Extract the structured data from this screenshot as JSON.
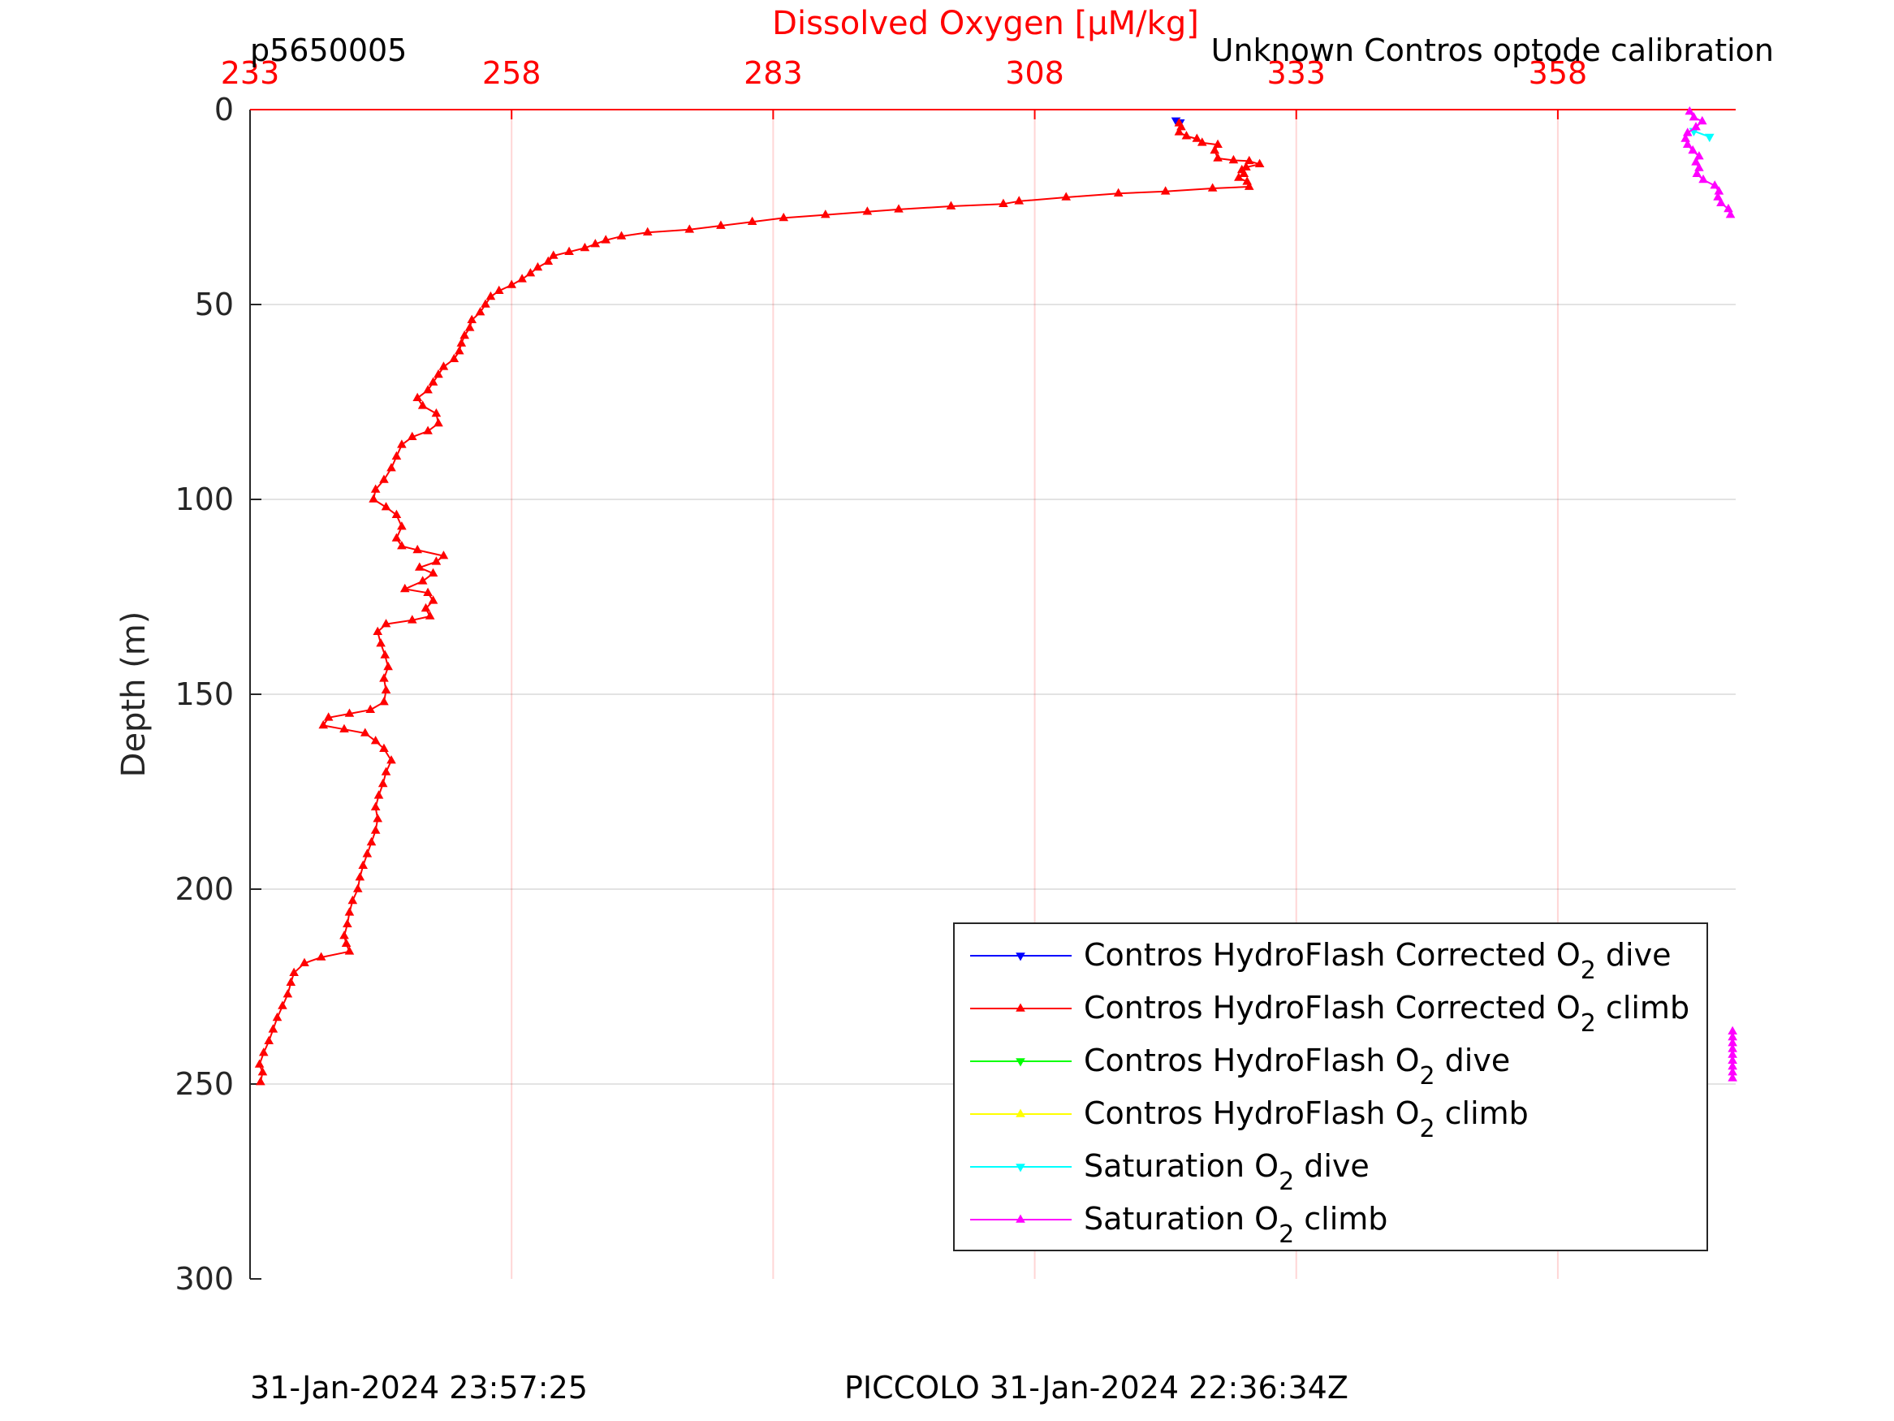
{
  "chart_data": {
    "type": "line",
    "title": "Dissolved Oxygen [µM/kg]",
    "title_color": "#ff0000",
    "top_left_label": "p5650005",
    "top_right_label": "Unknown Contros optode calibration",
    "footer_left": "31-Jan-2024 23:57:25",
    "footer_center": "PICCOLO 31-Jan-2024 22:36:34Z",
    "xlabel": "Dissolved Oxygen [µM/kg]",
    "ylabel": "Depth (m)",
    "xlim": [
      233,
      375
    ],
    "ylim": [
      0,
      300
    ],
    "y_reversed": true,
    "x_ticks": [
      "233",
      "258",
      "283",
      "308",
      "333",
      "358"
    ],
    "y_ticks": [
      "0",
      "50",
      "100",
      "150",
      "200",
      "250",
      "300"
    ],
    "grid": true,
    "legend_position": "bottom-right",
    "legend": [
      {
        "name_main": "Contros HydroFlash Corrected O",
        "name_sub": "2",
        "name_tail": " dive",
        "color": "#0000ff",
        "marker": "down"
      },
      {
        "name_main": "Contros HydroFlash Corrected O",
        "name_sub": "2",
        "name_tail": " climb",
        "color": "#ff0000",
        "marker": "up"
      },
      {
        "name_main": "Contros HydroFlash O",
        "name_sub": "2",
        "name_tail": " dive",
        "color": "#00ff00",
        "marker": "down"
      },
      {
        "name_main": "Contros HydroFlash O",
        "name_sub": "2",
        "name_tail": " climb",
        "color": "#ffff00",
        "marker": "up"
      },
      {
        "name_main": "Saturation O",
        "name_sub": "2",
        "name_tail": " dive",
        "color": "#00ffff",
        "marker": "down"
      },
      {
        "name_main": "Saturation O",
        "name_sub": "2",
        "name_tail": " climb",
        "color": "#ff00ff",
        "marker": "up"
      }
    ],
    "series": [
      {
        "name": "Contros HydroFlash Corrected O2 dive",
        "color": "#0000ff",
        "marker": "down",
        "points": [
          [
            321.5,
            2.8
          ],
          [
            321.9,
            3.3
          ]
        ]
      },
      {
        "name": "Contros HydroFlash Corrected O2 climb",
        "color": "#ff0000",
        "marker": "up",
        "points": [
          [
            234.0,
            249.5
          ],
          [
            234.2,
            247
          ],
          [
            233.9,
            245
          ],
          [
            234.3,
            242
          ],
          [
            234.8,
            239
          ],
          [
            235.2,
            236
          ],
          [
            235.6,
            233
          ],
          [
            236.1,
            230
          ],
          [
            236.6,
            227
          ],
          [
            236.9,
            224
          ],
          [
            237.2,
            221.5
          ],
          [
            238.2,
            219
          ],
          [
            239.8,
            217.5
          ],
          [
            242.5,
            216
          ],
          [
            242.2,
            214
          ],
          [
            242.0,
            212
          ],
          [
            242.3,
            209
          ],
          [
            242.5,
            206
          ],
          [
            242.8,
            203
          ],
          [
            243.3,
            200
          ],
          [
            243.5,
            197
          ],
          [
            243.8,
            194
          ],
          [
            244.2,
            191
          ],
          [
            244.6,
            188
          ],
          [
            245.0,
            185
          ],
          [
            245.2,
            182
          ],
          [
            245.0,
            179
          ],
          [
            245.3,
            176
          ],
          [
            245.7,
            173
          ],
          [
            246.0,
            170
          ],
          [
            246.5,
            167
          ],
          [
            245.8,
            164
          ],
          [
            245.0,
            162
          ],
          [
            244.0,
            160
          ],
          [
            242.0,
            159
          ],
          [
            240.0,
            158
          ],
          [
            240.5,
            156
          ],
          [
            242.5,
            155
          ],
          [
            244.5,
            154
          ],
          [
            245.8,
            152
          ],
          [
            246.0,
            149
          ],
          [
            245.8,
            146
          ],
          [
            246.2,
            143
          ],
          [
            245.9,
            140
          ],
          [
            245.5,
            137
          ],
          [
            245.2,
            134
          ],
          [
            246.0,
            132
          ],
          [
            248.5,
            131
          ],
          [
            250.2,
            130
          ],
          [
            249.8,
            128
          ],
          [
            250.5,
            126
          ],
          [
            250.0,
            124
          ],
          [
            247.8,
            123
          ],
          [
            249.5,
            121
          ],
          [
            250.5,
            119
          ],
          [
            249.2,
            117.5
          ],
          [
            250.8,
            116
          ],
          [
            251.5,
            114.5
          ],
          [
            249.0,
            113
          ],
          [
            247.5,
            112
          ],
          [
            247.0,
            110
          ],
          [
            247.5,
            107
          ],
          [
            247.0,
            104
          ],
          [
            246.0,
            102
          ],
          [
            244.8,
            100
          ],
          [
            245.0,
            97.5
          ],
          [
            245.8,
            95
          ],
          [
            246.5,
            92
          ],
          [
            247.0,
            89
          ],
          [
            247.5,
            86
          ],
          [
            248.5,
            84
          ],
          [
            250.0,
            82.5
          ],
          [
            251.0,
            80.5
          ],
          [
            250.8,
            78
          ],
          [
            249.5,
            76
          ],
          [
            249.0,
            74
          ],
          [
            250.0,
            72
          ],
          [
            250.5,
            70
          ],
          [
            251.0,
            68
          ],
          [
            251.5,
            66
          ],
          [
            252.5,
            64
          ],
          [
            253.0,
            62
          ],
          [
            253.2,
            60
          ],
          [
            253.5,
            58
          ],
          [
            254.0,
            56
          ],
          [
            254.2,
            54
          ],
          [
            255.0,
            52
          ],
          [
            255.5,
            50
          ],
          [
            256.0,
            48
          ],
          [
            256.8,
            46.5
          ],
          [
            258.0,
            45
          ],
          [
            259.0,
            43.5
          ],
          [
            259.8,
            42
          ],
          [
            260.5,
            40.5
          ],
          [
            261.5,
            39
          ],
          [
            262.0,
            37.5
          ],
          [
            263.5,
            36.5
          ],
          [
            265.0,
            35.5
          ],
          [
            266.0,
            34.5
          ],
          [
            267.0,
            33.5
          ],
          [
            268.5,
            32.5
          ],
          [
            271.0,
            31.5
          ],
          [
            275.0,
            30.8
          ],
          [
            278.0,
            29.8
          ],
          [
            281.0,
            28.8
          ],
          [
            284.0,
            27.8
          ],
          [
            288.0,
            27
          ],
          [
            292.0,
            26.2
          ],
          [
            295.0,
            25.6
          ],
          [
            300.0,
            24.8
          ],
          [
            305.0,
            24.2
          ],
          [
            306.5,
            23.5
          ],
          [
            311.0,
            22.5
          ],
          [
            316.0,
            21.5
          ],
          [
            320.5,
            21
          ],
          [
            325.0,
            20.2
          ],
          [
            328.5,
            19.8
          ],
          [
            328.3,
            18.5
          ],
          [
            327.5,
            17.5
          ],
          [
            328.0,
            16.5
          ],
          [
            327.8,
            15.5
          ],
          [
            328.2,
            14.8
          ],
          [
            329.5,
            14
          ],
          [
            328.5,
            13.2
          ],
          [
            327.0,
            13
          ],
          [
            325.5,
            12.5
          ],
          [
            325.2,
            10.5
          ],
          [
            325.5,
            9
          ],
          [
            324.0,
            8.5
          ],
          [
            323.5,
            7.5
          ],
          [
            322.5,
            6.8
          ],
          [
            321.8,
            5.8
          ],
          [
            322.0,
            4.5
          ],
          [
            321.8,
            3.5
          ]
        ]
      },
      {
        "name": "Saturation O2 dive",
        "color": "#00ffff",
        "marker": "down",
        "points": [
          [
            371.0,
            5.5
          ],
          [
            372.5,
            7
          ]
        ]
      },
      {
        "name": "Saturation O2 climb",
        "color": "#ff00ff",
        "marker": "up",
        "points": [
          [
            370.6,
            0.5
          ],
          [
            371.0,
            2
          ],
          [
            371.8,
            3
          ],
          [
            371.2,
            4.5
          ],
          [
            370.4,
            6
          ],
          [
            370.2,
            7.5
          ],
          [
            370.4,
            9
          ],
          [
            370.9,
            10.5
          ],
          [
            371.5,
            12
          ],
          [
            371.2,
            13.5
          ],
          [
            371.5,
            15
          ],
          [
            371.3,
            16.5
          ],
          [
            371.9,
            18
          ],
          [
            373.0,
            19.5
          ],
          [
            373.4,
            21
          ],
          [
            373.3,
            22.5
          ],
          [
            373.6,
            24
          ],
          [
            374.3,
            25.5
          ],
          [
            374.5,
            27
          ]
        ]
      },
      {
        "name": "Saturation O2 climb (deep)",
        "color": "#ff00ff",
        "marker": "up",
        "points": [
          [
            374.7,
            236.5
          ],
          [
            374.7,
            238
          ],
          [
            374.7,
            239.5
          ],
          [
            374.7,
            241
          ],
          [
            374.7,
            242.5
          ],
          [
            374.7,
            244
          ],
          [
            374.7,
            245.5
          ],
          [
            374.7,
            247
          ],
          [
            374.7,
            248.5
          ]
        ]
      }
    ]
  }
}
